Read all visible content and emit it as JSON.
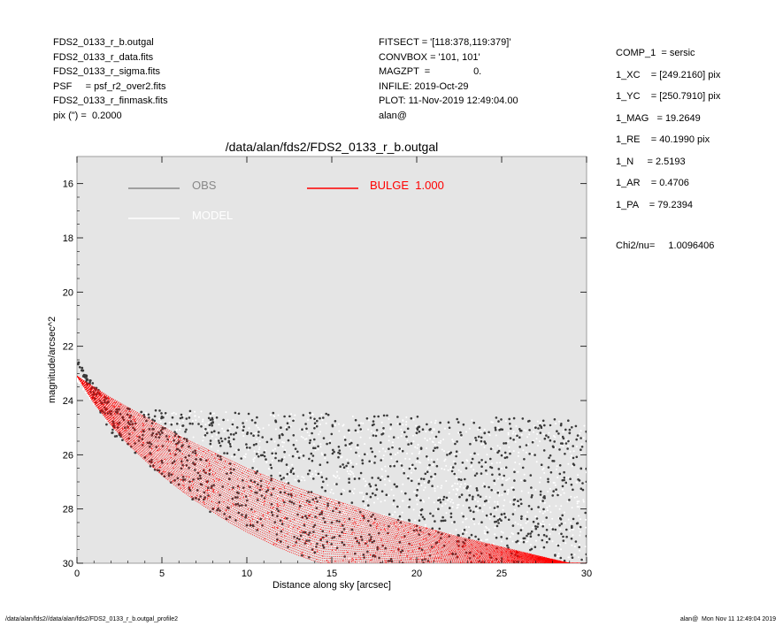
{
  "header": {
    "left": [
      "FDS2_0133_r_b.outgal",
      "FDS2_0133_r_data.fits",
      "FDS2_0133_r_sigma.fits",
      "PSF     = psf_r2_over2.fits",
      "FDS2_0133_r_finmask.fits",
      "pix (\") =  0.2000"
    ],
    "middle": [
      "FITSECT = '[118:378,119:379]'",
      "CONVBOX = '101, 101'",
      "MAGZPT  =                0.",
      "INFILE: 2019-Oct-29",
      "PLOT: 11-Nov-2019 12:49:04.00",
      "alan@"
    ],
    "right": [
      "COMP_1  = sersic",
      "1_XC    = [249.2160] pix",
      "1_YC    = [250.7910] pix",
      "1_MAG   = 19.2649",
      "1_RE    = 40.1990 pix",
      "1_N     = 2.5193",
      "1_AR    = 0.4706",
      "1_PA    = 79.2394"
    ],
    "chi_label": "Chi2/nu=",
    "chi_value": "1.0096406"
  },
  "footer": {
    "left": "/data/alan/fds2//data/alan/fds2/FDS2_0133_r_b.outgal_profile2",
    "right": "alan@  Mon Nov 11 12:49:04 2019"
  },
  "colors": {
    "background": "#e5e5e5",
    "obs": "#3a3a3a",
    "obs_legend": "#888888",
    "model": "#ffffff",
    "bulge": "#ff0000"
  },
  "chart_data": {
    "type": "scatter",
    "title": "/data/alan/fds2/FDS2_0133_r_b.outgal",
    "xlabel": "Distance along sky [arcsec]",
    "ylabel": "magnitude/arcsec^2",
    "xlim": [
      0,
      30
    ],
    "ylim": [
      30,
      15
    ],
    "y_inverted": true,
    "xticks": [
      "0",
      "5",
      "10",
      "15",
      "20",
      "25",
      "30"
    ],
    "yticks": [
      "16",
      "18",
      "20",
      "22",
      "24",
      "26",
      "28",
      "30"
    ],
    "grid": false,
    "legend": [
      {
        "name": "OBS",
        "style": "line",
        "color": "#888888"
      },
      {
        "name": "BULGE  1.000",
        "style": "line",
        "color": "#ff0000"
      },
      {
        "name": "MODEL",
        "style": "line",
        "color": "#ffffff"
      }
    ],
    "series": [
      {
        "name": "OBS",
        "kind": "scatter",
        "points": [
          [
            0.1,
            22.6
          ],
          [
            0.3,
            22.8
          ],
          [
            0.5,
            23.1
          ],
          [
            1,
            23.7
          ],
          [
            1.5,
            24.1
          ],
          [
            2,
            24.5
          ],
          [
            2.5,
            25.2
          ],
          [
            3,
            25.6
          ],
          [
            4,
            26.1
          ],
          [
            5,
            26.7
          ],
          [
            6,
            27.1
          ],
          [
            7,
            27.6
          ],
          [
            8,
            28.0
          ],
          [
            9,
            28.3
          ],
          [
            10,
            28.6
          ],
          [
            12,
            29.2
          ],
          [
            14,
            29.6
          ],
          [
            3,
            24.3
          ],
          [
            5,
            24.6
          ],
          [
            8,
            24.8
          ],
          [
            12,
            25.0
          ],
          [
            16,
            25.1
          ],
          [
            20,
            25.2
          ],
          [
            24,
            25.2
          ],
          [
            27,
            25.0
          ],
          [
            29,
            25.2
          ],
          [
            30,
            25.5
          ],
          [
            30,
            27.0
          ],
          [
            30,
            29.0
          ],
          [
            20,
            27.5
          ],
          [
            15,
            28.5
          ],
          [
            25,
            28.2
          ]
        ],
        "band": {
          "upper_env": [
            [
              0,
              22.6
            ],
            [
              1,
              23.4
            ],
            [
              2,
              24.1
            ],
            [
              3,
              24.3
            ],
            [
              30,
              24.7
            ]
          ],
          "lower_env": [
            [
              0,
              22.6
            ],
            [
              1,
              24.0
            ],
            [
              2,
              25.2
            ],
            [
              4,
              26.3
            ],
            [
              6,
              27.3
            ],
            [
              8,
              28.2
            ],
            [
              10,
              28.8
            ],
            [
              12,
              29.4
            ],
            [
              14,
              29.9
            ],
            [
              16,
              30
            ],
            [
              30,
              30
            ]
          ]
        }
      },
      {
        "name": "MODEL",
        "kind": "scatter",
        "band": {
          "upper_env": [
            [
              0,
              23.0
            ],
            [
              1,
              23.5
            ],
            [
              2,
              24.0
            ],
            [
              3,
              24.3
            ],
            [
              30,
              24.8
            ]
          ],
          "lower_env": [
            [
              0,
              23.3
            ],
            [
              2,
              25.0
            ],
            [
              4,
              26.2
            ],
            [
              6,
              27.2
            ],
            [
              8,
              28.0
            ],
            [
              10,
              28.6
            ],
            [
              12,
              29.2
            ],
            [
              14,
              29.7
            ],
            [
              16,
              30
            ],
            [
              30,
              30
            ]
          ]
        }
      },
      {
        "name": "BULGE  1.000",
        "kind": "curve-family",
        "min_axis_curve": [
          [
            0,
            23.1
          ],
          [
            1,
            24.1
          ],
          [
            2,
            24.9
          ],
          [
            3,
            25.6
          ],
          [
            4,
            26.2
          ],
          [
            5,
            26.75
          ],
          [
            6,
            27.25
          ],
          [
            7,
            27.7
          ],
          [
            8,
            28.1
          ],
          [
            9,
            28.5
          ],
          [
            10,
            28.85
          ],
          [
            11,
            29.15
          ],
          [
            12,
            29.45
          ],
          [
            13,
            29.7
          ],
          [
            14,
            29.92
          ],
          [
            14.5,
            30.0
          ]
        ],
        "maj_axis_curve": [
          [
            0,
            23.1
          ],
          [
            1,
            23.5
          ],
          [
            2,
            23.9
          ],
          [
            3,
            24.25
          ],
          [
            4,
            24.6
          ],
          [
            5,
            24.95
          ],
          [
            6,
            25.3
          ],
          [
            8,
            25.9
          ],
          [
            10,
            26.5
          ],
          [
            12,
            27.0
          ],
          [
            14,
            27.45
          ],
          [
            16,
            27.85
          ],
          [
            18,
            28.25
          ],
          [
            20,
            28.6
          ],
          [
            22,
            28.95
          ],
          [
            24,
            29.25
          ],
          [
            26,
            29.55
          ],
          [
            28,
            29.85
          ],
          [
            29,
            30.0
          ]
        ]
      }
    ]
  }
}
